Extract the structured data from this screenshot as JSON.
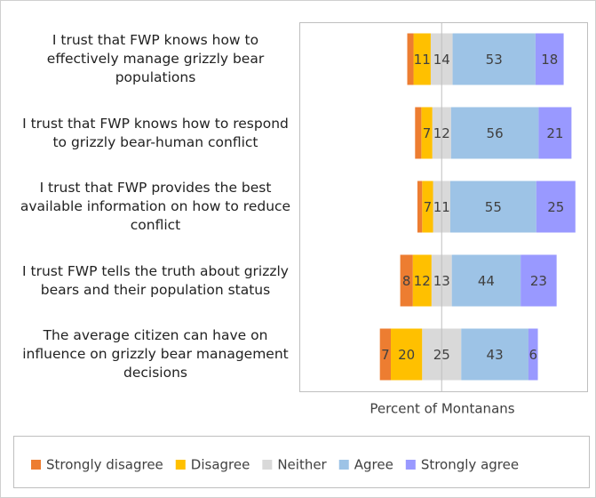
{
  "chart_data": {
    "type": "diverging_bar",
    "x_label": "Percent of Montanans",
    "categories": [
      "I trust that FWP knows how to effectively manage grizzly bear populations",
      "I trust that FWP knows how to respond to grizzly bear-human conflict",
      "I trust that FWP provides the best available information on how to reduce conflict",
      "I trust FWP tells the truth about grizzly bears and their population status",
      "The average citizen can have on influence on grizzly bear management decisions"
    ],
    "series": [
      {
        "name": "Strongly disagree",
        "color": "#ed7d31",
        "side": "negative",
        "values": [
          4,
          4,
          3,
          8,
          7
        ],
        "value_labels": [
          null,
          null,
          null,
          "8",
          "7"
        ]
      },
      {
        "name": "Disagree",
        "color": "#ffc000",
        "side": "negative",
        "values": [
          11,
          7,
          7,
          12,
          20
        ]
      },
      {
        "name": "Neither",
        "color": "#d9d9d9",
        "side": "center",
        "values": [
          14,
          12,
          11,
          13,
          25
        ]
      },
      {
        "name": "Agree",
        "color": "#9dc3e6",
        "side": "positive",
        "values": [
          53,
          56,
          55,
          44,
          43
        ]
      },
      {
        "name": "Strongly agree",
        "color": "#9999ff",
        "side": "positive",
        "values": [
          18,
          21,
          25,
          23,
          6
        ]
      }
    ],
    "xlim": [
      -91,
      93
    ]
  }
}
